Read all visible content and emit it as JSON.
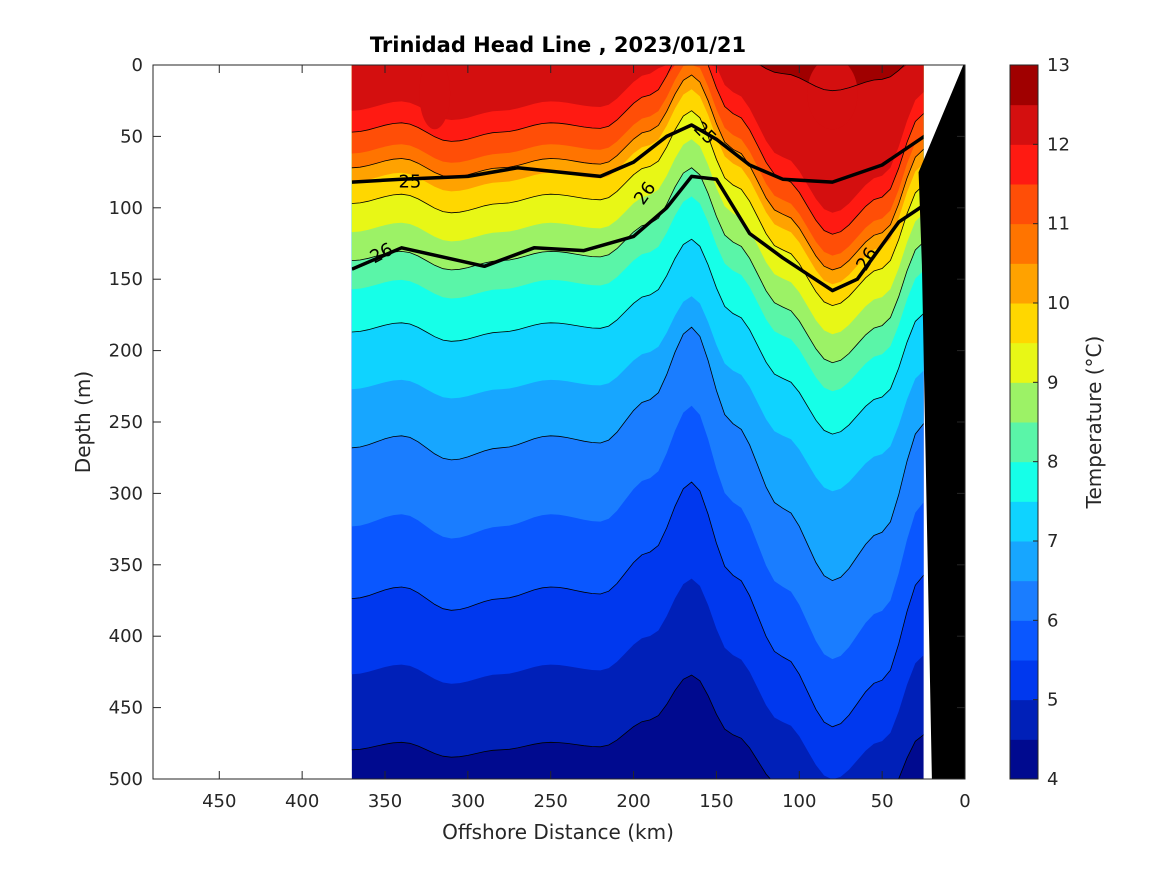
{
  "colors": {
    "colormap": [
      "#000a8f",
      "#0020b8",
      "#0038ee",
      "#0a57ff",
      "#1a7dff",
      "#17a6ff",
      "#0fd3ff",
      "#16ffe8",
      "#5af5a8",
      "#9cf266",
      "#e8f716",
      "#ffd700",
      "#ffa200",
      "#ff7400",
      "#ff4e07",
      "#ff1a12",
      "#d40f0f",
      "#a00000"
    ],
    "land": "#000000",
    "contour": "#000000"
  },
  "chart_data": {
    "type": "contourf",
    "title": "Trinidad Head Line , 2023/01/21",
    "xlabel": "Offshore Distance (km)",
    "ylabel": "Depth (m)",
    "xlim": [
      490,
      0
    ],
    "x_reversed": true,
    "ylim": [
      0,
      500
    ],
    "y_reversed": true,
    "x_ticks": [
      450,
      400,
      350,
      300,
      250,
      200,
      150,
      100,
      50,
      0
    ],
    "y_ticks": [
      0,
      50,
      100,
      150,
      200,
      250,
      300,
      350,
      400,
      450,
      500
    ],
    "data_extent_x": [
      370,
      25
    ],
    "colorbar": {
      "label": "Temperature (°C)",
      "range": [
        4,
        13
      ],
      "step": 0.5,
      "ticks": [
        4,
        5,
        6,
        7,
        8,
        9,
        10,
        11,
        12,
        13
      ]
    },
    "isotherms": [
      {
        "temp": 12.5,
        "depth": 0
      },
      {
        "temp": 12,
        "depth": 45
      },
      {
        "temp": 11.5,
        "depth": 60
      },
      {
        "temp": 11,
        "depth": 75
      },
      {
        "temp": 10.5,
        "depth": 85
      },
      {
        "temp": 10,
        "depth": 95
      },
      {
        "temp": 9.5,
        "depth": 110
      },
      {
        "temp": 9,
        "depth": 130
      },
      {
        "temp": 8.5,
        "depth": 150
      },
      {
        "temp": 8,
        "depth": 170
      },
      {
        "temp": 7.5,
        "depth": 200
      },
      {
        "temp": 7,
        "depth": 240
      },
      {
        "temp": 6.5,
        "depth": 285
      },
      {
        "temp": 6,
        "depth": 340
      },
      {
        "temp": 5.5,
        "depth": 390
      },
      {
        "temp": 5,
        "depth": 440
      },
      {
        "temp": 4.5,
        "depth": 490
      }
    ],
    "profile_x": [
      370,
      340,
      310,
      280,
      250,
      220,
      190,
      165,
      140,
      110,
      80,
      50,
      25
    ],
    "displacement_m": [
      -10,
      -15,
      -5,
      -10,
      -15,
      -12,
      -30,
      -60,
      -20,
      15,
      45,
      25,
      -20
    ],
    "density_contours": [
      {
        "label": "25",
        "x": [
          370,
          340,
          300,
          270,
          220,
          200,
          180,
          165,
          150,
          130,
          110,
          80,
          50,
          22
        ],
        "depth": [
          82,
          80,
          78,
          72,
          78,
          68,
          50,
          42,
          52,
          70,
          80,
          82,
          70,
          48
        ]
      },
      {
        "label": "26",
        "x": [
          370,
          340,
          290,
          260,
          230,
          200,
          180,
          165,
          150,
          130,
          110,
          80,
          65,
          40,
          22
        ],
        "depth": [
          143,
          128,
          141,
          128,
          130,
          120,
          100,
          78,
          80,
          118,
          135,
          158,
          150,
          110,
          96
        ]
      }
    ],
    "density_labels": [
      {
        "text": "25",
        "x": 335,
        "depth": 82,
        "angle": 0
      },
      {
        "text": "25",
        "x": 157,
        "depth": 48,
        "angle": 45
      },
      {
        "text": "26",
        "x": 352,
        "depth": 132,
        "angle": -28
      },
      {
        "text": "26",
        "x": 193,
        "depth": 90,
        "angle": -55
      },
      {
        "text": "26",
        "x": 59,
        "depth": 136,
        "angle": -58
      }
    ],
    "land_polygon": {
      "x": [
        1,
        -2,
        -2,
        20,
        26,
        28
      ],
      "depth": [
        0,
        0,
        500,
        500,
        140,
        75
      ]
    }
  }
}
